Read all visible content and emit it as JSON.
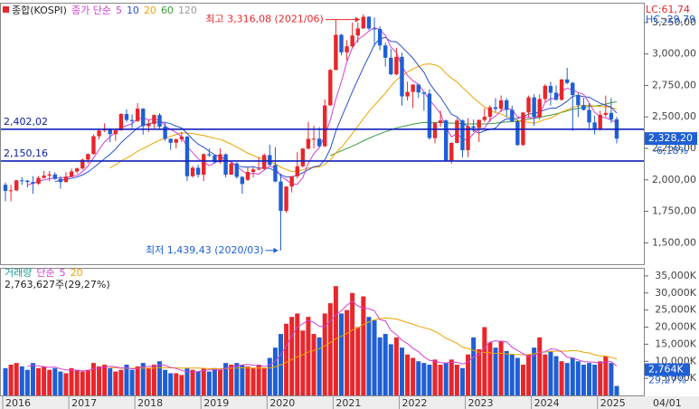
{
  "chart_data": [
    {
      "type": "candlestick",
      "title": "종합(KOSPI)",
      "ma_label": "종가 단순",
      "ma": [
        {
          "period": 5,
          "color": "#d23fd2"
        },
        {
          "period": 10,
          "color": "#2a4fd0"
        },
        {
          "period": 20,
          "color": "#eea300"
        },
        {
          "period": 60,
          "color": "#3a9a3a"
        },
        {
          "period": 120,
          "color": "#999999"
        }
      ],
      "up_color": "#e8262b",
      "down_color": "#1f5fd4",
      "categories": [
        "2016",
        null,
        null,
        null,
        null,
        null,
        null,
        null,
        null,
        null,
        null,
        null,
        "2017",
        null,
        null,
        null,
        null,
        null,
        null,
        null,
        null,
        null,
        null,
        null,
        "2018",
        null,
        null,
        null,
        null,
        null,
        null,
        null,
        null,
        null,
        null,
        null,
        "2019",
        null,
        null,
        null,
        null,
        null,
        null,
        null,
        null,
        null,
        null,
        null,
        "2020",
        null,
        null,
        null,
        null,
        null,
        null,
        null,
        null,
        null,
        null,
        null,
        "2021",
        null,
        null,
        null,
        null,
        null,
        null,
        null,
        null,
        null,
        null,
        null,
        "2022",
        null,
        null,
        null,
        null,
        null,
        null,
        null,
        null,
        null,
        null,
        null,
        "2023",
        null,
        null,
        null,
        null,
        null,
        null,
        null,
        null,
        null,
        null,
        null,
        "2024",
        null,
        null,
        null,
        null,
        null,
        null,
        null,
        null,
        null,
        null,
        null,
        "2025",
        null,
        null,
        null
      ],
      "ohlc": [
        [
          1961,
          1980,
          1830,
          1912
        ],
        [
          1912,
          1960,
          1830,
          1917
        ],
        [
          1917,
          2000,
          1910,
          1996
        ],
        [
          1996,
          2020,
          1960,
          1994
        ],
        [
          1994,
          2000,
          1940,
          1983
        ],
        [
          1983,
          2030,
          1890,
          1970
        ],
        [
          1970,
          2030,
          1960,
          2016
        ],
        [
          2016,
          2070,
          2010,
          2034
        ],
        [
          2034,
          2070,
          1990,
          2043
        ],
        [
          2043,
          2060,
          2000,
          2008
        ],
        [
          2008,
          2030,
          1930,
          1983
        ],
        [
          1983,
          2060,
          1980,
          2026
        ],
        [
          2026,
          2090,
          2020,
          2067
        ],
        [
          2067,
          2100,
          2050,
          2091
        ],
        [
          2091,
          2170,
          2080,
          2160
        ],
        [
          2160,
          2210,
          2130,
          2205
        ],
        [
          2205,
          2360,
          2200,
          2347
        ],
        [
          2347,
          2400,
          2320,
          2392
        ],
        [
          2392,
          2450,
          2380,
          2402
        ],
        [
          2402,
          2410,
          2300,
          2363
        ],
        [
          2363,
          2400,
          2310,
          2394
        ],
        [
          2394,
          2530,
          2390,
          2523
        ],
        [
          2523,
          2560,
          2460,
          2476
        ],
        [
          2476,
          2520,
          2410,
          2467
        ],
        [
          2467,
          2610,
          2460,
          2566
        ],
        [
          2566,
          2570,
          2360,
          2427
        ],
        [
          2427,
          2480,
          2380,
          2445
        ],
        [
          2445,
          2520,
          2410,
          2515
        ],
        [
          2515,
          2530,
          2400,
          2423
        ],
        [
          2423,
          2460,
          2310,
          2326
        ],
        [
          2326,
          2330,
          2240,
          2295
        ],
        [
          2295,
          2330,
          2250,
          2322
        ],
        [
          2322,
          2380,
          2300,
          2343
        ],
        [
          2343,
          2350,
          1990,
          2029
        ],
        [
          2029,
          2110,
          2020,
          2096
        ],
        [
          2096,
          2120,
          2020,
          2041
        ],
        [
          2041,
          2210,
          1990,
          2204
        ],
        [
          2204,
          2250,
          2180,
          2195
        ],
        [
          2195,
          2200,
          2130,
          2140
        ],
        [
          2140,
          2250,
          2130,
          2203
        ],
        [
          2203,
          2210,
          2020,
          2041
        ],
        [
          2041,
          2140,
          2040,
          2130
        ],
        [
          2130,
          2140,
          2010,
          2024
        ],
        [
          2024,
          2030,
          1890,
          1967
        ],
        [
          2000,
          2100,
          1990,
          2063
        ],
        [
          2063,
          2100,
          2020,
          2083
        ],
        [
          2083,
          2180,
          2080,
          2087
        ],
        [
          2087,
          2210,
          2080,
          2197
        ],
        [
          2197,
          2280,
          2110,
          2119
        ],
        [
          2119,
          2260,
          1980,
          1987
        ],
        [
          1987,
          2050,
          1439.43,
          1754
        ],
        [
          1754,
          1950,
          1740,
          1947
        ],
        [
          1947,
          2030,
          1900,
          2029
        ],
        [
          2029,
          2220,
          2010,
          2108
        ],
        [
          2108,
          2250,
          2100,
          2249
        ],
        [
          2249,
          2460,
          2240,
          2326
        ],
        [
          2326,
          2430,
          2250,
          2327
        ],
        [
          2327,
          2420,
          2260,
          2267
        ],
        [
          2267,
          2640,
          2260,
          2591
        ],
        [
          2591,
          2880,
          2590,
          2873
        ],
        [
          2873,
          3270,
          2870,
          3152
        ],
        [
          3152,
          3160,
          2990,
          3013
        ],
        [
          3013,
          3110,
          2950,
          3061
        ],
        [
          3061,
          3250,
          3050,
          3147
        ],
        [
          3147,
          3250,
          3090,
          3203
        ],
        [
          3203,
          3316.08,
          3200,
          3296
        ],
        [
          3296,
          3300,
          3190,
          3202
        ],
        [
          3202,
          3290,
          3060,
          3199
        ],
        [
          3199,
          3220,
          3030,
          3068
        ],
        [
          3068,
          3090,
          2900,
          2970
        ],
        [
          2970,
          3040,
          2830,
          2839
        ],
        [
          2839,
          3050,
          2830,
          2977
        ],
        [
          2977,
          3010,
          2590,
          2663
        ],
        [
          2663,
          2780,
          2630,
          2699
        ],
        [
          2699,
          2760,
          2570,
          2757
        ],
        [
          2757,
          2760,
          2650,
          2695
        ],
        [
          2695,
          2700,
          2550,
          2685
        ],
        [
          2685,
          2720,
          2320,
          2332
        ],
        [
          2332,
          2460,
          2290,
          2451
        ],
        [
          2451,
          2550,
          2420,
          2472
        ],
        [
          2472,
          2480,
          2150,
          2155
        ],
        [
          2155,
          2300,
          2130,
          2293
        ],
        [
          2293,
          2490,
          2290,
          2472
        ],
        [
          2472,
          2480,
          2180,
          2236
        ],
        [
          2236,
          2490,
          2180,
          2425
        ],
        [
          2425,
          2480,
          2380,
          2412
        ],
        [
          2412,
          2480,
          2300,
          2476
        ],
        [
          2476,
          2570,
          2460,
          2501
        ],
        [
          2501,
          2590,
          2460,
          2577
        ],
        [
          2577,
          2650,
          2540,
          2564
        ],
        [
          2564,
          2670,
          2540,
          2632
        ],
        [
          2632,
          2650,
          2500,
          2556
        ],
        [
          2556,
          2590,
          2460,
          2465
        ],
        [
          2465,
          2480,
          2270,
          2277
        ],
        [
          2277,
          2540,
          2270,
          2535
        ],
        [
          2535,
          2670,
          2500,
          2655
        ],
        [
          2655,
          2680,
          2430,
          2497
        ],
        [
          2497,
          2680,
          2480,
          2642
        ],
        [
          2642,
          2760,
          2620,
          2747
        ],
        [
          2747,
          2780,
          2590,
          2692
        ],
        [
          2692,
          2750,
          2630,
          2636
        ],
        [
          2636,
          2800,
          2630,
          2798
        ],
        [
          2798,
          2890,
          2760,
          2770
        ],
        [
          2770,
          2780,
          2390,
          2674
        ],
        [
          2674,
          2690,
          2500,
          2593
        ],
        [
          2593,
          2650,
          2550,
          2556
        ],
        [
          2556,
          2610,
          2410,
          2456
        ],
        [
          2456,
          2510,
          2360,
          2399
        ],
        [
          2399,
          2550,
          2390,
          2517
        ],
        [
          2517,
          2670,
          2500,
          2532
        ],
        [
          2532,
          2650,
          2450,
          2481
        ],
        [
          2481,
          2500,
          2290,
          2328.2
        ]
      ],
      "ylim": [
        1330,
        3400
      ],
      "yticks": [
        {
          "value": 1500,
          "label": "1,500,00"
        },
        {
          "value": 1750,
          "label": "1,750,00"
        },
        {
          "value": 2000,
          "label": "2,000,00"
        },
        {
          "value": 2250,
          "label": "2,250,00"
        },
        {
          "value": 2500,
          "label": "2,500,00"
        },
        {
          "value": 2750,
          "label": "2,750,00"
        },
        {
          "value": 3000,
          "label": "3,000,00"
        },
        {
          "value": 3250,
          "label": "3,250,00"
        }
      ],
      "hlines": [
        {
          "value": 2402.02,
          "label": "2,402,02"
        },
        {
          "value": 2150.16,
          "label": "2,150,16"
        }
      ],
      "annotations": [
        "최고 3,316,08 (2021/06)",
        "최저 1,439,43 (2020/03)"
      ],
      "last_label": "2,328,20",
      "change_label": "-6,18%",
      "lc_label": "LC:61,74",
      "hc_label": "HC:-29,79",
      "end_label": "04/01"
    },
    {
      "type": "bar",
      "title": "거래량",
      "ma_label": "단순",
      "ma": [
        {
          "period": 5,
          "color": "#d23fd2"
        },
        {
          "period": 20,
          "color": "#eea300"
        }
      ],
      "values": [
        8000,
        9000,
        9500,
        8500,
        7500,
        9500,
        8000,
        8500,
        7500,
        8000,
        7000,
        6500,
        8000,
        7500,
        7000,
        7500,
        9500,
        8500,
        9000,
        8000,
        7000,
        7500,
        9000,
        7500,
        8500,
        9500,
        8000,
        9000,
        10000,
        7500,
        6500,
        6500,
        6000,
        8000,
        7500,
        7000,
        8000,
        7000,
        8000,
        7500,
        9500,
        9000,
        9500,
        9000,
        8500,
        8000,
        9000,
        8000,
        11000,
        14000,
        18000,
        21000,
        23000,
        24000,
        19000,
        23000,
        18000,
        17000,
        24000,
        27000,
        32000,
        24000,
        25000,
        30000,
        20000,
        29000,
        23000,
        22000,
        17000,
        18000,
        15000,
        17000,
        14000,
        12000,
        11000,
        10000,
        9500,
        9000,
        10500,
        9000,
        9500,
        10500,
        9000,
        8000,
        12000,
        17000,
        13500,
        20000,
        15500,
        14000,
        16000,
        13000,
        12000,
        11000,
        9000,
        12000,
        14000,
        17000,
        12000,
        13000,
        11500,
        10000,
        9500,
        11000,
        10000,
        9000,
        9500,
        9000,
        10000,
        11500,
        9500,
        2763.627
      ],
      "ylim": [
        0,
        37100
      ],
      "yticks": [
        {
          "value": 5000,
          "label": "5,000K"
        },
        {
          "value": 10000,
          "label": "10,000K"
        },
        {
          "value": 15000,
          "label": "15,000K"
        },
        {
          "value": 20000,
          "label": "20,000K"
        },
        {
          "value": 25000,
          "label": "25,000K"
        },
        {
          "value": 30000,
          "label": "30,000K"
        },
        {
          "value": 35000,
          "label": "35,000K"
        }
      ],
      "value_label": "2,763,627주(29,27%)",
      "last_label": "2,764K",
      "ratio_label": "29,27%"
    }
  ]
}
